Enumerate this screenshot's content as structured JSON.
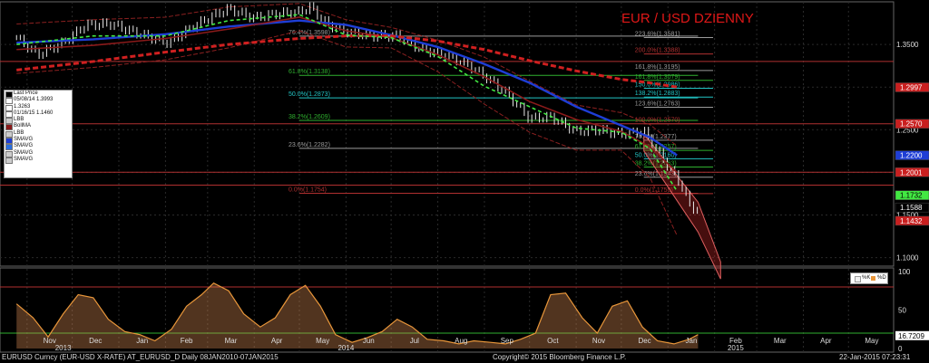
{
  "chart_data": {
    "type": "line",
    "title": "EUR / USD DZIENNY",
    "instrument": "EURUSD Curncy (EUR-USD X-RATE) AT_EURUSD_D  Daily 08JAN2010-07JAN2015",
    "copyright": "Copyright© 2015 Bloomberg Finance L.P.",
    "timestamp": "22-Jan-2015 07:23:31",
    "y_ticks": [
      "1.3500",
      "1.3000",
      "1.2500",
      "1.2000",
      "1.1500",
      "1.1000"
    ],
    "ylim": [
      1.09,
      1.4
    ],
    "x_months": [
      "Nov",
      "Dec",
      "Jan",
      "Feb",
      "Mar",
      "Apr",
      "May",
      "Jun",
      "Jul",
      "Aug",
      "Sep",
      "Oct",
      "Nov",
      "Dec",
      "Jan",
      "Feb",
      "Mar",
      "Apr",
      "May"
    ],
    "x_years": [
      "2013",
      "2014",
      "2015"
    ],
    "price": {
      "x": [
        "2013-10-25",
        "2013-11-08",
        "2013-11-25",
        "2013-12-10",
        "2013-12-27",
        "2014-01-15",
        "2014-02-03",
        "2014-02-20",
        "2014-03-05",
        "2014-03-15",
        "2014-04-01",
        "2014-04-15",
        "2014-05-01",
        "2014-05-08",
        "2014-05-20",
        "2014-06-05",
        "2014-06-20",
        "2014-07-05",
        "2014-07-20",
        "2014-08-05",
        "2014-08-20",
        "2014-09-01",
        "2014-09-15",
        "2014-10-01",
        "2014-10-15",
        "2014-11-01",
        "2014-11-15",
        "2014-12-01",
        "2014-12-16",
        "2014-12-31",
        "2015-01-10",
        "2015-01-16",
        "2015-01-21"
      ],
      "y": [
        1.358,
        1.338,
        1.352,
        1.373,
        1.374,
        1.362,
        1.352,
        1.372,
        1.384,
        1.392,
        1.381,
        1.386,
        1.388,
        1.394,
        1.373,
        1.363,
        1.36,
        1.36,
        1.345,
        1.338,
        1.327,
        1.313,
        1.294,
        1.263,
        1.265,
        1.248,
        1.25,
        1.245,
        1.248,
        1.21,
        1.185,
        1.159,
        1.157
      ]
    },
    "series": [
      {
        "name": "SMAVG",
        "color": "#1e3ed6",
        "x": [
          "2013-10-25",
          "2013-12-15",
          "2014-02-01",
          "2014-03-15",
          "2014-05-01",
          "2014-06-01",
          "2014-07-01",
          "2014-08-01",
          "2014-09-01",
          "2014-10-01",
          "2014-11-01",
          "2014-12-01",
          "2014-12-20",
          "2015-01-07"
        ],
        "y": [
          1.352,
          1.356,
          1.362,
          1.371,
          1.378,
          1.373,
          1.361,
          1.347,
          1.327,
          1.305,
          1.277,
          1.255,
          1.241,
          1.22
        ]
      },
      {
        "name": "SMAVG",
        "color": "#8b1a1a",
        "x": [
          "2013-10-25",
          "2013-12-15",
          "2014-02-01",
          "2014-03-15",
          "2014-05-01",
          "2014-06-01",
          "2014-07-01",
          "2014-08-01",
          "2014-09-01",
          "2014-10-01",
          "2014-11-01",
          "2014-12-01",
          "2014-12-20",
          "2015-01-07"
        ],
        "y": [
          1.344,
          1.349,
          1.357,
          1.368,
          1.382,
          1.366,
          1.358,
          1.338,
          1.312,
          1.283,
          1.262,
          1.248,
          1.23,
          1.2
        ]
      },
      {
        "name": "SMAVG",
        "color": "#d02020",
        "x": [
          "2013-10-25",
          "2013-12-15",
          "2014-02-01",
          "2014-03-15",
          "2014-05-01",
          "2014-06-01",
          "2014-07-01",
          "2014-08-01",
          "2014-09-01",
          "2014-10-01",
          "2014-11-01",
          "2014-12-01",
          "2014-12-20",
          "2015-01-07"
        ],
        "y": [
          1.32,
          1.33,
          1.341,
          1.35,
          1.357,
          1.36,
          1.36,
          1.354,
          1.344,
          1.331,
          1.319,
          1.309,
          1.305,
          1.3
        ]
      },
      {
        "name": "SMAVG",
        "color": "#42e842",
        "x": [
          "2013-10-25",
          "2013-12-15",
          "2014-02-01",
          "2014-03-15",
          "2014-05-01",
          "2014-06-01",
          "2014-07-01",
          "2014-08-01",
          "2014-09-01",
          "2014-10-01",
          "2014-11-01",
          "2014-12-01",
          "2014-12-20",
          "2015-01-07"
        ],
        "y": [
          1.35,
          1.36,
          1.36,
          1.378,
          1.385,
          1.361,
          1.358,
          1.336,
          1.301,
          1.277,
          1.252,
          1.247,
          1.228,
          1.178
        ]
      }
    ],
    "bands": {
      "x": [
        "2013-10-25",
        "2013-12-15",
        "2014-02-01",
        "2014-03-15",
        "2014-05-01",
        "2014-06-01",
        "2014-07-01",
        "2014-08-01",
        "2014-09-01",
        "2014-10-01",
        "2014-11-01",
        "2014-12-01",
        "2014-12-20",
        "2015-01-07"
      ],
      "upper": [
        1.374,
        1.379,
        1.382,
        1.394,
        1.398,
        1.379,
        1.37,
        1.355,
        1.335,
        1.307,
        1.279,
        1.27,
        1.256,
        1.231
      ],
      "lower": [
        1.316,
        1.323,
        1.332,
        1.346,
        1.366,
        1.347,
        1.346,
        1.318,
        1.28,
        1.247,
        1.226,
        1.226,
        1.194,
        1.126
      ]
    },
    "fib_left": [
      {
        "label": "76.4%(1.3598)",
        "value": 1.3598,
        "color": "#9b9b9b"
      },
      {
        "label": "61.8%(1.3138)",
        "value": 1.3138,
        "color": "#2fb02f"
      },
      {
        "label": "50.0%(1.2873)",
        "value": 1.2873,
        "color": "#22c4c4"
      },
      {
        "label": "38.2%(1.2609)",
        "value": 1.2609,
        "color": "#2fb02f"
      },
      {
        "label": "23.6%(1.2282)",
        "value": 1.2282,
        "color": "#9b9b9b"
      },
      {
        "label": "0.0%(1.1754)",
        "value": 1.1754,
        "color": "#b03030"
      }
    ],
    "fib_right": [
      {
        "label": "223.6%(1.3581)",
        "value": 1.3581,
        "color": "#9b9b9b"
      },
      {
        "label": "200.0%(1.3388)",
        "value": 1.3388,
        "color": "#b03030"
      },
      {
        "label": "161.8%(1.3195)",
        "value": 1.3195,
        "color": "#9b9b9b"
      },
      {
        "label": "161.8%(1.3079)",
        "value": 1.3079,
        "color": "#2fb02f"
      },
      {
        "label": "150.0%(1.2986)",
        "value": 1.2986,
        "color": "#22c4c4"
      },
      {
        "label": "138.2%(1.2883)",
        "value": 1.2883,
        "color": "#22c4c4"
      },
      {
        "label": "123.6%(1.2763)",
        "value": 1.2763,
        "color": "#9b9b9b"
      },
      {
        "label": "100.0%(1.2570)",
        "value": 1.257,
        "color": "#b03030"
      },
      {
        "label": "76.4%(1.2377)",
        "value": 1.2377,
        "color": "#9b9b9b"
      },
      {
        "label": "61.8%(1.2257)",
        "value": 1.2257,
        "color": "#2fb02f"
      },
      {
        "label": "50.0%(1.2160)",
        "value": 1.216,
        "color": "#22c4c4"
      },
      {
        "label": "38.2%(1.2063)",
        "value": 1.2063,
        "color": "#2fb02f"
      },
      {
        "label": "23.6%(1.1943)",
        "value": 1.1943,
        "color": "#9b9b9b"
      },
      {
        "label": "0.0%(1.1750)",
        "value": 1.175,
        "color": "#b03030"
      }
    ],
    "hlines": [
      {
        "value": 1.33,
        "color": "#b03030"
      },
      {
        "value": 1.257,
        "color": "#b03030"
      },
      {
        "value": 1.2001,
        "color": "#b03030"
      },
      {
        "value": 1.185,
        "color": "#b03030"
      }
    ],
    "channel": {
      "x": [
        "2014-12-16",
        "2015-01-21",
        "2015-02-05"
      ],
      "top": [
        1.245,
        1.165,
        1.095
      ],
      "bottom": [
        1.225,
        1.13,
        1.075
      ],
      "color": "#e06060"
    },
    "price_tags": [
      {
        "label": "1.2997",
        "value": 1.2997,
        "bg": "#c91f1f",
        "fg": "#ffffff"
      },
      {
        "label": "1.2570",
        "value": 1.257,
        "bg": "#c91f1f",
        "fg": "#ffffff"
      },
      {
        "label": "1.2200",
        "value": 1.22,
        "bg": "#1e3ed6",
        "fg": "#ffffff"
      },
      {
        "label": "1.2001",
        "value": 1.2001,
        "bg": "#c91f1f",
        "fg": "#ffffff"
      },
      {
        "label": "1.1732",
        "value": 1.1732,
        "bg": "#42e842",
        "fg": "#000000"
      },
      {
        "label": "1.1588",
        "value": 1.1588,
        "bg": "#000000",
        "fg": "#ffffff"
      },
      {
        "label": "1.1432",
        "value": 1.1432,
        "bg": "#c91f1f",
        "fg": "#ffffff"
      }
    ],
    "legend": [
      {
        "label": "Last Price",
        "color": "#000000"
      },
      {
        "label": "05/08/14 1.3993",
        "color": "#ffffff"
      },
      {
        "label": "1.3263",
        "color": "#ffffff"
      },
      {
        "label": "01/16/15 1.1460",
        "color": "#ffffff"
      },
      {
        "label": "LBB",
        "color": "#cccccc"
      },
      {
        "label": "BollMA",
        "color": "#8b1a1a"
      },
      {
        "label": "LBB",
        "color": "#cccccc"
      },
      {
        "label": "SMAVG",
        "color": "#1e3ed6"
      },
      {
        "label": "SMAVG",
        "color": "#2a6fe0"
      },
      {
        "label": "SMAVG",
        "color": "#cccccc"
      },
      {
        "label": "SMAVG",
        "color": "#cccccc"
      }
    ],
    "stoch": {
      "legend": [
        {
          "label": "%K",
          "color": "#f0f0f0"
        },
        {
          "label": "%D",
          "color": "#e8963a"
        }
      ],
      "ticks": [
        "100",
        "50",
        "0"
      ],
      "ylim": [
        0,
        100
      ],
      "levels": [
        {
          "value": 80,
          "color": "#b03030"
        },
        {
          "value": 20,
          "color": "#2fb02f"
        }
      ],
      "current": {
        "label": "16.7209",
        "value": 16.72
      },
      "x": [
        "2013-10-25",
        "2013-11-05",
        "2013-11-15",
        "2013-11-25",
        "2013-12-05",
        "2013-12-15",
        "2013-12-25",
        "2014-01-05",
        "2014-01-15",
        "2014-01-25",
        "2014-02-05",
        "2014-02-15",
        "2014-02-25",
        "2014-03-05",
        "2014-03-15",
        "2014-03-25",
        "2014-04-05",
        "2014-04-15",
        "2014-04-25",
        "2014-05-05",
        "2014-05-15",
        "2014-05-25",
        "2014-06-05",
        "2014-06-15",
        "2014-06-25",
        "2014-07-05",
        "2014-07-15",
        "2014-07-25",
        "2014-08-05",
        "2014-08-15",
        "2014-08-25",
        "2014-09-05",
        "2014-09-15",
        "2014-09-25",
        "2014-10-05",
        "2014-10-15",
        "2014-10-25",
        "2014-11-05",
        "2014-11-15",
        "2014-11-25",
        "2014-12-05",
        "2014-12-15",
        "2014-12-25",
        "2015-01-05",
        "2015-01-15",
        "2015-01-21"
      ],
      "d": [
        58,
        40,
        15,
        45,
        70,
        66,
        38,
        22,
        18,
        10,
        25,
        55,
        70,
        85,
        75,
        45,
        28,
        40,
        70,
        82,
        55,
        18,
        8,
        14,
        22,
        38,
        28,
        12,
        10,
        6,
        10,
        8,
        6,
        12,
        20,
        70,
        72,
        40,
        20,
        55,
        62,
        28,
        10,
        6,
        12,
        18
      ]
    }
  }
}
